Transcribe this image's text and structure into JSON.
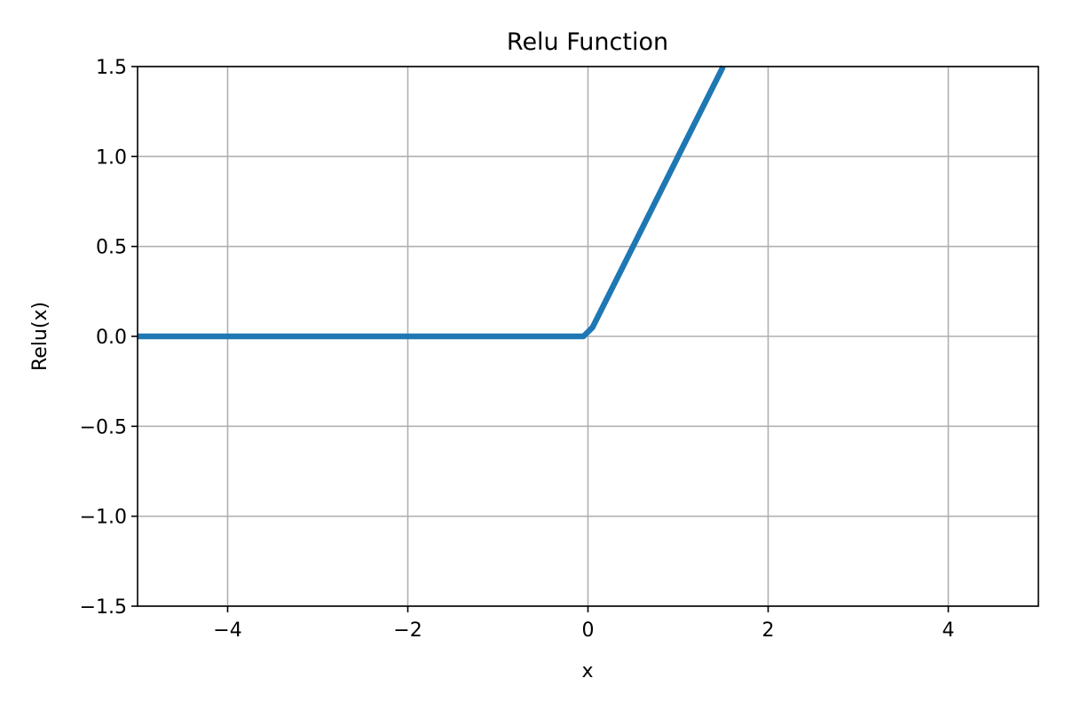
{
  "chart_data": {
    "type": "line",
    "title": "Relu Function",
    "xlabel": "x",
    "ylabel": "Relu(x)",
    "xlim": [
      -5,
      5
    ],
    "ylim": [
      -1.5,
      1.5
    ],
    "grid": true,
    "xticks": [
      -4,
      -2,
      0,
      2,
      4
    ],
    "xtick_labels": [
      "−4",
      "−2",
      "0",
      "2",
      "4"
    ],
    "yticks": [
      -1.5,
      -1.0,
      -0.5,
      0.0,
      0.5,
      1.0,
      1.5
    ],
    "ytick_labels": [
      "−1.5",
      "−1.0",
      "−0.5",
      "0.0",
      "0.5",
      "1.0",
      "1.5"
    ],
    "series": [
      {
        "color": "#1f77b4",
        "x": [
          -5,
          -4,
          -3,
          -2,
          -1,
          -0.05,
          0.05,
          0.5,
          1.0,
          1.5
        ],
        "y": [
          0,
          0,
          0,
          0,
          0,
          0,
          0.05,
          0.5,
          1.0,
          1.5
        ]
      }
    ]
  }
}
